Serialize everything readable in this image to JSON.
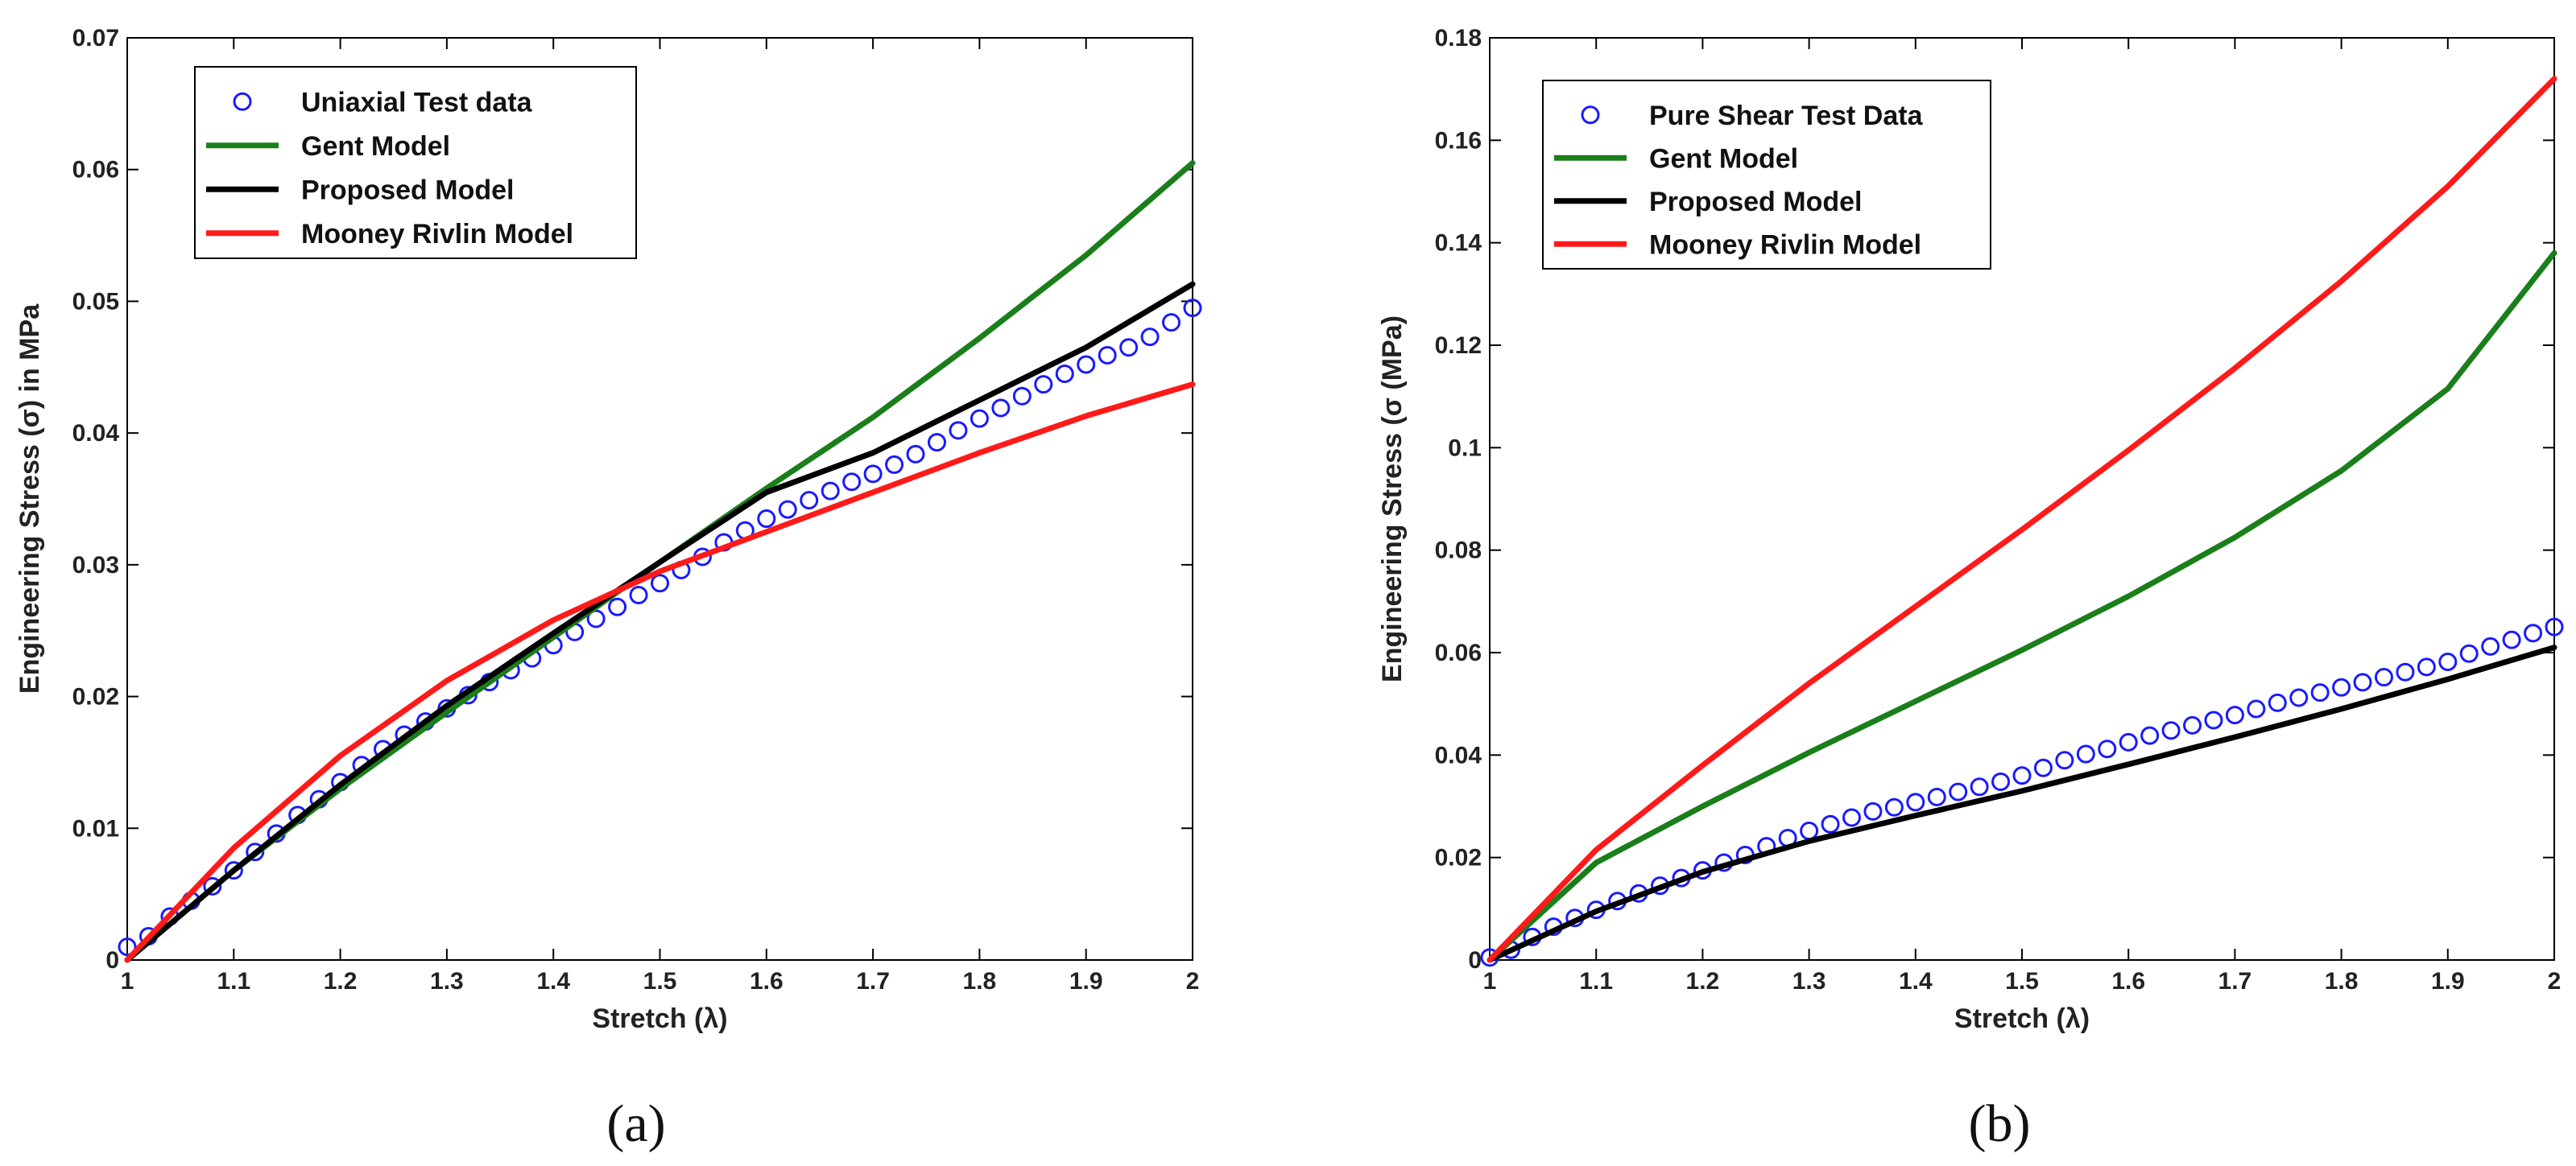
{
  "chart_data": [
    {
      "panel": "a",
      "type": "line",
      "caption": "(a)",
      "xlabel": "Stretch (λ)",
      "ylabel": "Engineering Stress (σ) in MPa",
      "xlim": [
        1,
        2
      ],
      "ylim": [
        0,
        0.07
      ],
      "xticks": [
        1,
        1.1,
        1.2,
        1.3,
        1.4,
        1.5,
        1.6,
        1.7,
        1.8,
        1.9,
        2
      ],
      "xtick_labels": [
        "1",
        "1.1",
        "1.2",
        "1.3",
        "1.4",
        "1.5",
        "1.6",
        "1.7",
        "1.8",
        "1.9",
        "2"
      ],
      "yticks": [
        0,
        0.01,
        0.02,
        0.03,
        0.04,
        0.05,
        0.06,
        0.07
      ],
      "ytick_labels": [
        "0",
        "0.01",
        "0.02",
        "0.03",
        "0.04",
        "0.05",
        "0.06",
        "0.07"
      ],
      "legend_position": "top-left",
      "series": [
        {
          "name": "Uniaxial Test data",
          "kind": "markers",
          "color": "#1a1aff",
          "x": [
            1.0,
            1.02,
            1.04,
            1.06,
            1.08,
            1.1,
            1.12,
            1.14,
            1.16,
            1.18,
            1.2,
            1.22,
            1.24,
            1.26,
            1.28,
            1.3,
            1.32,
            1.34,
            1.36,
            1.38,
            1.4,
            1.42,
            1.44,
            1.46,
            1.48,
            1.5,
            1.52,
            1.54,
            1.56,
            1.58,
            1.6,
            1.62,
            1.64,
            1.66,
            1.68,
            1.7,
            1.72,
            1.74,
            1.76,
            1.78,
            1.8,
            1.82,
            1.84,
            1.86,
            1.88,
            1.9,
            1.92,
            1.94,
            1.96,
            1.98,
            2.0
          ],
          "values": [
            0.001,
            0.0018,
            0.0033,
            0.0045,
            0.0056,
            0.0068,
            0.0082,
            0.0096,
            0.011,
            0.0122,
            0.0135,
            0.0148,
            0.016,
            0.0171,
            0.0181,
            0.0191,
            0.0201,
            0.0211,
            0.022,
            0.0229,
            0.0239,
            0.0249,
            0.0259,
            0.0268,
            0.0277,
            0.0286,
            0.0296,
            0.0306,
            0.0317,
            0.0326,
            0.0335,
            0.0342,
            0.0349,
            0.0356,
            0.0363,
            0.0369,
            0.0376,
            0.0384,
            0.0393,
            0.0402,
            0.0411,
            0.0419,
            0.0428,
            0.0437,
            0.0445,
            0.0452,
            0.0459,
            0.0465,
            0.0473,
            0.0484,
            0.0495
          ]
        },
        {
          "name": "Gent Model",
          "kind": "line",
          "color": "#1a7f1a",
          "x": [
            1.0,
            1.1,
            1.2,
            1.3,
            1.4,
            1.5,
            1.6,
            1.7,
            1.8,
            1.9,
            2.0
          ],
          "values": [
            0.0,
            0.0068,
            0.013,
            0.0188,
            0.0245,
            0.0302,
            0.0358,
            0.0412,
            0.0472,
            0.0535,
            0.0605
          ]
        },
        {
          "name": "Proposed Model",
          "kind": "line",
          "color": "#000000",
          "x": [
            1.0,
            1.1,
            1.2,
            1.3,
            1.4,
            1.5,
            1.6,
            1.7,
            1.8,
            1.9,
            2.0
          ],
          "values": [
            0.0,
            0.0068,
            0.0133,
            0.0193,
            0.0248,
            0.0302,
            0.0355,
            0.0385,
            0.0425,
            0.0465,
            0.0513
          ]
        },
        {
          "name": "Mooney Rivlin Model",
          "kind": "line",
          "color": "#ff1a1a",
          "x": [
            1.0,
            1.1,
            1.2,
            1.3,
            1.4,
            1.5,
            1.6,
            1.7,
            1.8,
            1.9,
            2.0
          ],
          "values": [
            0.0,
            0.0085,
            0.0155,
            0.0212,
            0.0258,
            0.0295,
            0.0325,
            0.0355,
            0.0385,
            0.0413,
            0.0437
          ]
        }
      ]
    },
    {
      "panel": "b",
      "type": "line",
      "caption": "(b)",
      "xlabel": "Stretch (λ)",
      "ylabel": "Engineering Stress (σ (MPa)",
      "xlim": [
        1,
        2
      ],
      "ylim": [
        0,
        0.18
      ],
      "xticks": [
        1,
        1.1,
        1.2,
        1.3,
        1.4,
        1.5,
        1.6,
        1.7,
        1.8,
        1.9,
        2
      ],
      "xtick_labels": [
        "1",
        "1.1",
        "1.2",
        "1.3",
        "1.4",
        "1.5",
        "1.6",
        "1.7",
        "1.8",
        "1.9",
        "2"
      ],
      "yticks": [
        0,
        0.02,
        0.04,
        0.06,
        0.08,
        0.1,
        0.12,
        0.14,
        0.16,
        0.18
      ],
      "ytick_labels": [
        "0",
        "0.02",
        "0.04",
        "0.06",
        "0.08",
        "0.1",
        "0.12",
        "0.14",
        "0.16",
        "0.18"
      ],
      "legend_position": "top-left",
      "series": [
        {
          "name": "Pure Shear Test Data",
          "kind": "markers",
          "color": "#1a1aff",
          "x": [
            1.0,
            1.02,
            1.04,
            1.06,
            1.08,
            1.1,
            1.12,
            1.14,
            1.16,
            1.18,
            1.2,
            1.22,
            1.24,
            1.26,
            1.28,
            1.3,
            1.32,
            1.34,
            1.36,
            1.38,
            1.4,
            1.42,
            1.44,
            1.46,
            1.48,
            1.5,
            1.52,
            1.54,
            1.56,
            1.58,
            1.6,
            1.62,
            1.64,
            1.66,
            1.68,
            1.7,
            1.72,
            1.74,
            1.76,
            1.78,
            1.8,
            1.82,
            1.84,
            1.86,
            1.88,
            1.9,
            1.92,
            1.94,
            1.96,
            1.98,
            2.0
          ],
          "values": [
            0.0005,
            0.002,
            0.0045,
            0.0065,
            0.0082,
            0.0098,
            0.0115,
            0.013,
            0.0145,
            0.016,
            0.0175,
            0.019,
            0.0205,
            0.0222,
            0.0238,
            0.0252,
            0.0265,
            0.0278,
            0.029,
            0.0298,
            0.0308,
            0.0318,
            0.0328,
            0.0338,
            0.0348,
            0.036,
            0.0375,
            0.039,
            0.0402,
            0.0412,
            0.0425,
            0.0438,
            0.0448,
            0.0458,
            0.0468,
            0.0478,
            0.049,
            0.0502,
            0.0512,
            0.0522,
            0.0532,
            0.0542,
            0.0552,
            0.0562,
            0.0572,
            0.0582,
            0.0598,
            0.0612,
            0.0625,
            0.0638,
            0.065
          ]
        },
        {
          "name": "Gent Model",
          "kind": "line",
          "color": "#1a7f1a",
          "x": [
            1.0,
            1.1,
            1.2,
            1.3,
            1.4,
            1.5,
            1.6,
            1.7,
            1.8,
            1.9,
            2.0
          ],
          "values": [
            0.0,
            0.019,
            0.03,
            0.0405,
            0.0505,
            0.0605,
            0.071,
            0.0825,
            0.0955,
            0.1115,
            0.138
          ]
        },
        {
          "name": "Proposed Model",
          "kind": "line",
          "color": "#000000",
          "x": [
            1.0,
            1.1,
            1.2,
            1.3,
            1.4,
            1.5,
            1.6,
            1.7,
            1.8,
            1.9,
            2.0
          ],
          "values": [
            0.0,
            0.0095,
            0.0172,
            0.0232,
            0.0282,
            0.033,
            0.0382,
            0.0435,
            0.049,
            0.0548,
            0.061
          ]
        },
        {
          "name": "Mooney Rivlin Model",
          "kind": "line",
          "color": "#ff1a1a",
          "x": [
            1.0,
            1.1,
            1.2,
            1.3,
            1.4,
            1.5,
            1.6,
            1.7,
            1.8,
            1.9,
            2.0
          ],
          "values": [
            0.0,
            0.0215,
            0.038,
            0.054,
            0.069,
            0.084,
            0.0995,
            0.1155,
            0.1325,
            0.151,
            0.172
          ]
        }
      ]
    }
  ]
}
